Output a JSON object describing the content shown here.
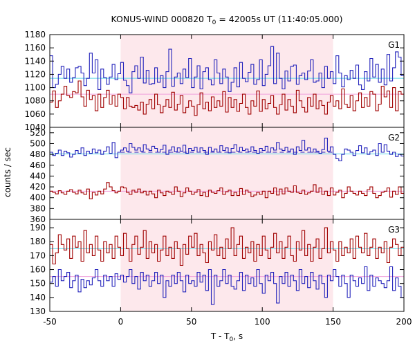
{
  "chart_data": {
    "type": "line",
    "title_main": "KONUS-WIND 000820 T",
    "title_sub": "0",
    "title_rest": " = 42005s UT (11:40:05.000)",
    "ylabel": "counts / sec",
    "xlabel_main": "T - T",
    "xlabel_sub": "0",
    "xlabel_rest": ", s",
    "xlim": [
      -50,
      200
    ],
    "xticks": [
      "-50",
      "0",
      "50",
      "100",
      "150",
      "200"
    ],
    "xtick_values": [
      -50,
      0,
      50,
      100,
      150,
      200
    ],
    "highlight_interval": [
      0,
      150
    ],
    "colors": {
      "blue": "#2222bb",
      "red": "#a00000",
      "cyan": "#5fd7e8",
      "pink": "#f0a0dc",
      "shade": "#fde8ec"
    },
    "panels": [
      {
        "label": "G1",
        "ylim": [
          1040,
          1180
        ],
        "yticks": [
          "1040",
          "1060",
          "1080",
          "1100",
          "1120",
          "1140",
          "1160",
          "1180"
        ],
        "ytick_values": [
          1040,
          1060,
          1080,
          1100,
          1120,
          1140,
          1160,
          1180
        ],
        "bg_upper": 1114,
        "bg_lower": 1090,
        "upper_name": "blue",
        "lower_name": "red",
        "upper_x": [
          -50,
          -48,
          -46,
          -44,
          -42,
          -40,
          -38,
          -36,
          -34,
          -32,
          -30,
          -28,
          -26,
          -24,
          -22,
          -20,
          -18,
          -16,
          -14,
          -12,
          -10,
          -8,
          -6,
          -4,
          -2,
          0,
          2,
          4,
          6,
          8,
          10,
          12,
          14,
          16,
          18,
          20,
          22,
          24,
          26,
          28,
          30,
          32,
          34,
          36,
          38,
          40,
          42,
          44,
          46,
          48,
          50,
          52,
          54,
          56,
          58,
          60,
          62,
          64,
          66,
          68,
          70,
          72,
          74,
          76,
          78,
          80,
          82,
          84,
          86,
          88,
          90,
          92,
          94,
          96,
          98,
          100,
          102,
          104,
          106,
          108,
          110,
          112,
          114,
          116,
          118,
          120,
          122,
          124,
          126,
          128,
          130,
          132,
          134,
          136,
          138,
          140,
          142,
          144,
          146,
          148,
          150,
          152,
          154,
          156,
          158,
          160,
          162,
          164,
          166,
          168,
          170,
          172,
          174,
          176,
          178,
          180,
          182,
          184,
          186,
          188,
          190,
          192,
          194,
          196,
          198
        ],
        "upper_y": [
          1148,
          1100,
          1105,
          1120,
          1132,
          1114,
          1128,
          1108,
          1115,
          1130,
          1132,
          1122,
          1103,
          1114,
          1152,
          1122,
          1142,
          1097,
          1128,
          1115,
          1105,
          1116,
          1135,
          1112,
          1121,
          1138,
          1111,
          1103,
          1092,
          1124,
          1133,
          1114,
          1146,
          1107,
          1126,
          1105,
          1106,
          1130,
          1108,
          1118,
          1100,
          1124,
          1158,
          1102,
          1116,
          1122,
          1106,
          1128,
          1115,
          1144,
          1100,
          1116,
          1133,
          1098,
          1124,
          1130,
          1112,
          1104,
          1142,
          1122,
          1106,
          1128,
          1116,
          1094,
          1108,
          1130,
          1101,
          1138,
          1114,
          1109,
          1123,
          1135,
          1105,
          1112,
          1142,
          1103,
          1120,
          1133,
          1162,
          1106,
          1152,
          1114,
          1098,
          1125,
          1110,
          1132,
          1134,
          1105,
          1118,
          1122,
          1112,
          1125,
          1142,
          1108,
          1110,
          1122,
          1100,
          1132,
          1114,
          1124,
          1106,
          1148,
          1122,
          1101,
          1118,
          1112,
          1126,
          1114,
          1134,
          1104,
          1097,
          1124,
          1110,
          1144,
          1116,
          1135,
          1108,
          1128,
          1104,
          1150,
          1110,
          1130,
          1154,
          1146,
          1118
        ],
        "lower_y": [
          1078,
          1095,
          1070,
          1080,
          1090,
          1102,
          1088,
          1085,
          1094,
          1092,
          1110,
          1086,
          1072,
          1096,
          1082,
          1088,
          1065,
          1090,
          1070,
          1085,
          1096,
          1075,
          1088,
          1072,
          1090,
          1085,
          1068,
          1085,
          1072,
          1070,
          1073,
          1066,
          1078,
          1060,
          1075,
          1082,
          1068,
          1090,
          1074,
          1062,
          1072,
          1082,
          1070,
          1093,
          1066,
          1075,
          1088,
          1062,
          1070,
          1080,
          1072,
          1058,
          1074,
          1092,
          1068,
          1078,
          1065,
          1086,
          1070,
          1080,
          1072,
          1094,
          1063,
          1085,
          1070,
          1082,
          1064,
          1076,
          1090,
          1070,
          1060,
          1080,
          1072,
          1095,
          1064,
          1082,
          1068,
          1076,
          1088,
          1070,
          1060,
          1074,
          1090,
          1066,
          1082,
          1072,
          1062,
          1096,
          1080,
          1070,
          1063,
          1085,
          1072,
          1090,
          1068,
          1080,
          1073,
          1060,
          1078,
          1088,
          1072,
          1080,
          1068,
          1098,
          1075,
          1070,
          1088,
          1065,
          1080,
          1092,
          1070,
          1085,
          1072,
          1094,
          1090,
          1065,
          1075,
          1102,
          1086,
          1095,
          1070,
          1100,
          1065,
          1094,
          1090
        ]
      },
      {
        "label": "G2",
        "ylim": [
          360,
          530
        ],
        "yticks": [
          "360",
          "380",
          "400",
          "420",
          "440",
          "460",
          "480",
          "500",
          "520"
        ],
        "ytick_values": [
          360,
          380,
          400,
          420,
          440,
          460,
          480,
          500,
          520
        ],
        "bg_upper": 481,
        "bg_lower": 412,
        "bg_dashed": 484,
        "dashed_range": [
          0,
          150
        ],
        "upper_name": "blue",
        "lower_name": "red",
        "upper_x": [
          -50,
          -48,
          -46,
          -44,
          -42,
          -40,
          -38,
          -36,
          -34,
          -32,
          -30,
          -28,
          -26,
          -24,
          -22,
          -20,
          -18,
          -16,
          -14,
          -12,
          -10,
          -8,
          -6,
          -4,
          -2,
          0,
          2,
          4,
          6,
          8,
          10,
          12,
          14,
          16,
          18,
          20,
          22,
          24,
          26,
          28,
          30,
          32,
          34,
          36,
          38,
          40,
          42,
          44,
          46,
          48,
          50,
          52,
          54,
          56,
          58,
          60,
          62,
          64,
          66,
          68,
          70,
          72,
          74,
          76,
          78,
          80,
          82,
          84,
          86,
          88,
          90,
          92,
          94,
          96,
          98,
          100,
          102,
          104,
          106,
          108,
          110,
          112,
          114,
          116,
          118,
          120,
          122,
          124,
          126,
          128,
          130,
          132,
          134,
          136,
          138,
          140,
          142,
          144,
          146,
          148,
          150,
          152,
          154,
          156,
          158,
          160,
          162,
          164,
          166,
          168,
          170,
          172,
          174,
          176,
          178,
          180,
          182,
          184,
          186,
          188,
          190,
          192,
          194,
          196,
          198
        ],
        "upper_y": [
          484,
          478,
          482,
          488,
          478,
          486,
          483,
          475,
          480,
          487,
          482,
          492,
          478,
          486,
          482,
          490,
          483,
          488,
          480,
          486,
          494,
          482,
          502,
          474,
          484,
          488,
          492,
          486,
          500,
          493,
          488,
          492,
          486,
          498,
          490,
          487,
          495,
          491,
          484,
          489,
          497,
          480,
          488,
          494,
          485,
          492,
          486,
          497,
          482,
          491,
          487,
          493,
          484,
          492,
          487,
          480,
          493,
          486,
          490,
          484,
          496,
          487,
          492,
          483,
          491,
          498,
          486,
          493,
          487,
          490,
          485,
          494,
          487,
          482,
          491,
          487,
          495,
          484,
          492,
          488,
          502,
          490,
          487,
          493,
          486,
          490,
          480,
          494,
          487,
          506,
          488,
          492,
          484,
          490,
          486,
          482,
          489,
          510,
          486,
          494,
          480,
          472,
          468,
          480,
          490,
          488,
          484,
          478,
          487,
          496,
          483,
          492,
          480,
          485,
          488,
          478,
          500,
          484,
          498,
          486,
          480,
          484,
          476,
          480,
          477
        ],
        "lower_y": [
          412,
          410,
          407,
          413,
          409,
          406,
          412,
          415,
          410,
          407,
          414,
          409,
          406,
          416,
          398,
          410,
          405,
          412,
          407,
          416,
          428,
          420,
          413,
          409,
          412,
          420,
          418,
          410,
          406,
          414,
          410,
          416,
          409,
          412,
          405,
          412,
          407,
          400,
          414,
          409,
          404,
          412,
          410,
          406,
          420,
          412,
          402,
          409,
          418,
          412,
          406,
          410,
          415,
          404,
          410,
          402,
          414,
          410,
          408,
          413,
          418,
          406,
          411,
          414,
          404,
          410,
          404,
          417,
          406,
          414,
          410,
          402,
          405,
          410,
          406,
          412,
          400,
          412,
          408,
          418,
          405,
          416,
          407,
          418,
          412,
          410,
          422,
          410,
          408,
          414,
          406,
          409,
          412,
          424,
          410,
          418,
          406,
          412,
          404,
          418,
          405,
          410,
          414,
          400,
          408,
          420,
          412,
          408,
          405,
          412,
          408,
          404,
          415,
          420,
          408,
          400,
          404,
          410,
          412,
          418,
          401,
          412,
          406,
          420,
          408
        ]
      },
      {
        "label": "G3",
        "ylim": [
          130,
          196
        ],
        "yticks": [
          "130",
          "140",
          "150",
          "160",
          "170",
          "180",
          "190"
        ],
        "ytick_values": [
          130,
          140,
          150,
          160,
          170,
          180,
          190
        ],
        "bg_upper": 175,
        "bg_lower": 155,
        "upper_name": "red",
        "lower_name": "blue",
        "upper_x": [
          -50,
          -48,
          -46,
          -44,
          -42,
          -40,
          -38,
          -36,
          -34,
          -32,
          -30,
          -28,
          -26,
          -24,
          -22,
          -20,
          -18,
          -16,
          -14,
          -12,
          -10,
          -8,
          -6,
          -4,
          -2,
          0,
          2,
          4,
          6,
          8,
          10,
          12,
          14,
          16,
          18,
          20,
          22,
          24,
          26,
          28,
          30,
          32,
          34,
          36,
          38,
          40,
          42,
          44,
          46,
          48,
          50,
          52,
          54,
          56,
          58,
          60,
          62,
          64,
          66,
          68,
          70,
          72,
          74,
          76,
          78,
          80,
          82,
          84,
          86,
          88,
          90,
          92,
          94,
          96,
          98,
          100,
          102,
          104,
          106,
          108,
          110,
          112,
          114,
          116,
          118,
          120,
          122,
          124,
          126,
          128,
          130,
          132,
          134,
          136,
          138,
          140,
          142,
          144,
          146,
          148,
          150,
          152,
          154,
          156,
          158,
          160,
          162,
          164,
          166,
          168,
          170,
          172,
          174,
          176,
          178,
          180,
          182,
          184,
          186,
          188,
          190,
          192,
          194,
          196,
          198
        ],
        "upper_y": [
          178,
          164,
          172,
          185,
          178,
          174,
          182,
          168,
          184,
          176,
          180,
          166,
          188,
          172,
          178,
          170,
          184,
          174,
          166,
          180,
          172,
          178,
          168,
          184,
          176,
          170,
          186,
          175,
          166,
          178,
          184,
          171,
          176,
          188,
          168,
          180,
          172,
          178,
          166,
          174,
          184,
          170,
          176,
          168,
          180,
          175,
          163,
          178,
          171,
          184,
          176,
          186,
          170,
          178,
          172,
          165,
          180,
          174,
          185,
          170,
          176,
          168,
          182,
          175,
          190,
          170,
          178,
          184,
          168,
          176,
          172,
          180,
          166,
          178,
          170,
          184,
          174,
          168,
          176,
          186,
          172,
          180,
          168,
          176,
          184,
          170,
          166,
          180,
          174,
          188,
          170,
          178,
          166,
          176,
          182,
          168,
          175,
          190,
          172,
          180,
          174,
          166,
          180,
          170,
          176,
          172,
          182,
          168,
          184,
          176,
          172,
          186,
          170,
          176,
          182,
          168,
          176,
          172,
          180,
          165,
          176,
          182,
          178,
          170,
          176
        ],
        "lower_y": [
          151,
          155,
          148,
          160,
          152,
          155,
          158,
          147,
          152,
          156,
          144,
          153,
          147,
          152,
          149,
          154,
          160,
          152,
          148,
          156,
          152,
          155,
          148,
          157,
          153,
          156,
          151,
          155,
          160,
          150,
          155,
          146,
          158,
          152,
          156,
          148,
          152,
          158,
          150,
          156,
          140,
          152,
          148,
          156,
          150,
          158,
          152,
          144,
          156,
          150,
          152,
          148,
          158,
          151,
          156,
          145,
          160,
          135,
          156,
          148,
          152,
          160,
          150,
          156,
          148,
          146,
          152,
          158,
          145,
          156,
          150,
          154,
          148,
          160,
          150,
          143,
          156,
          152,
          158,
          150,
          136,
          155,
          150,
          158,
          148,
          156,
          152,
          145,
          160,
          150,
          155,
          147,
          158,
          152,
          146,
          156,
          150,
          140,
          156,
          152,
          160,
          155,
          148,
          156,
          150,
          140,
          156,
          152,
          148,
          154,
          150,
          162,
          145,
          156,
          148,
          154,
          152,
          150,
          147,
          152,
          162,
          145,
          154,
          148,
          140
        ]
      }
    ]
  }
}
